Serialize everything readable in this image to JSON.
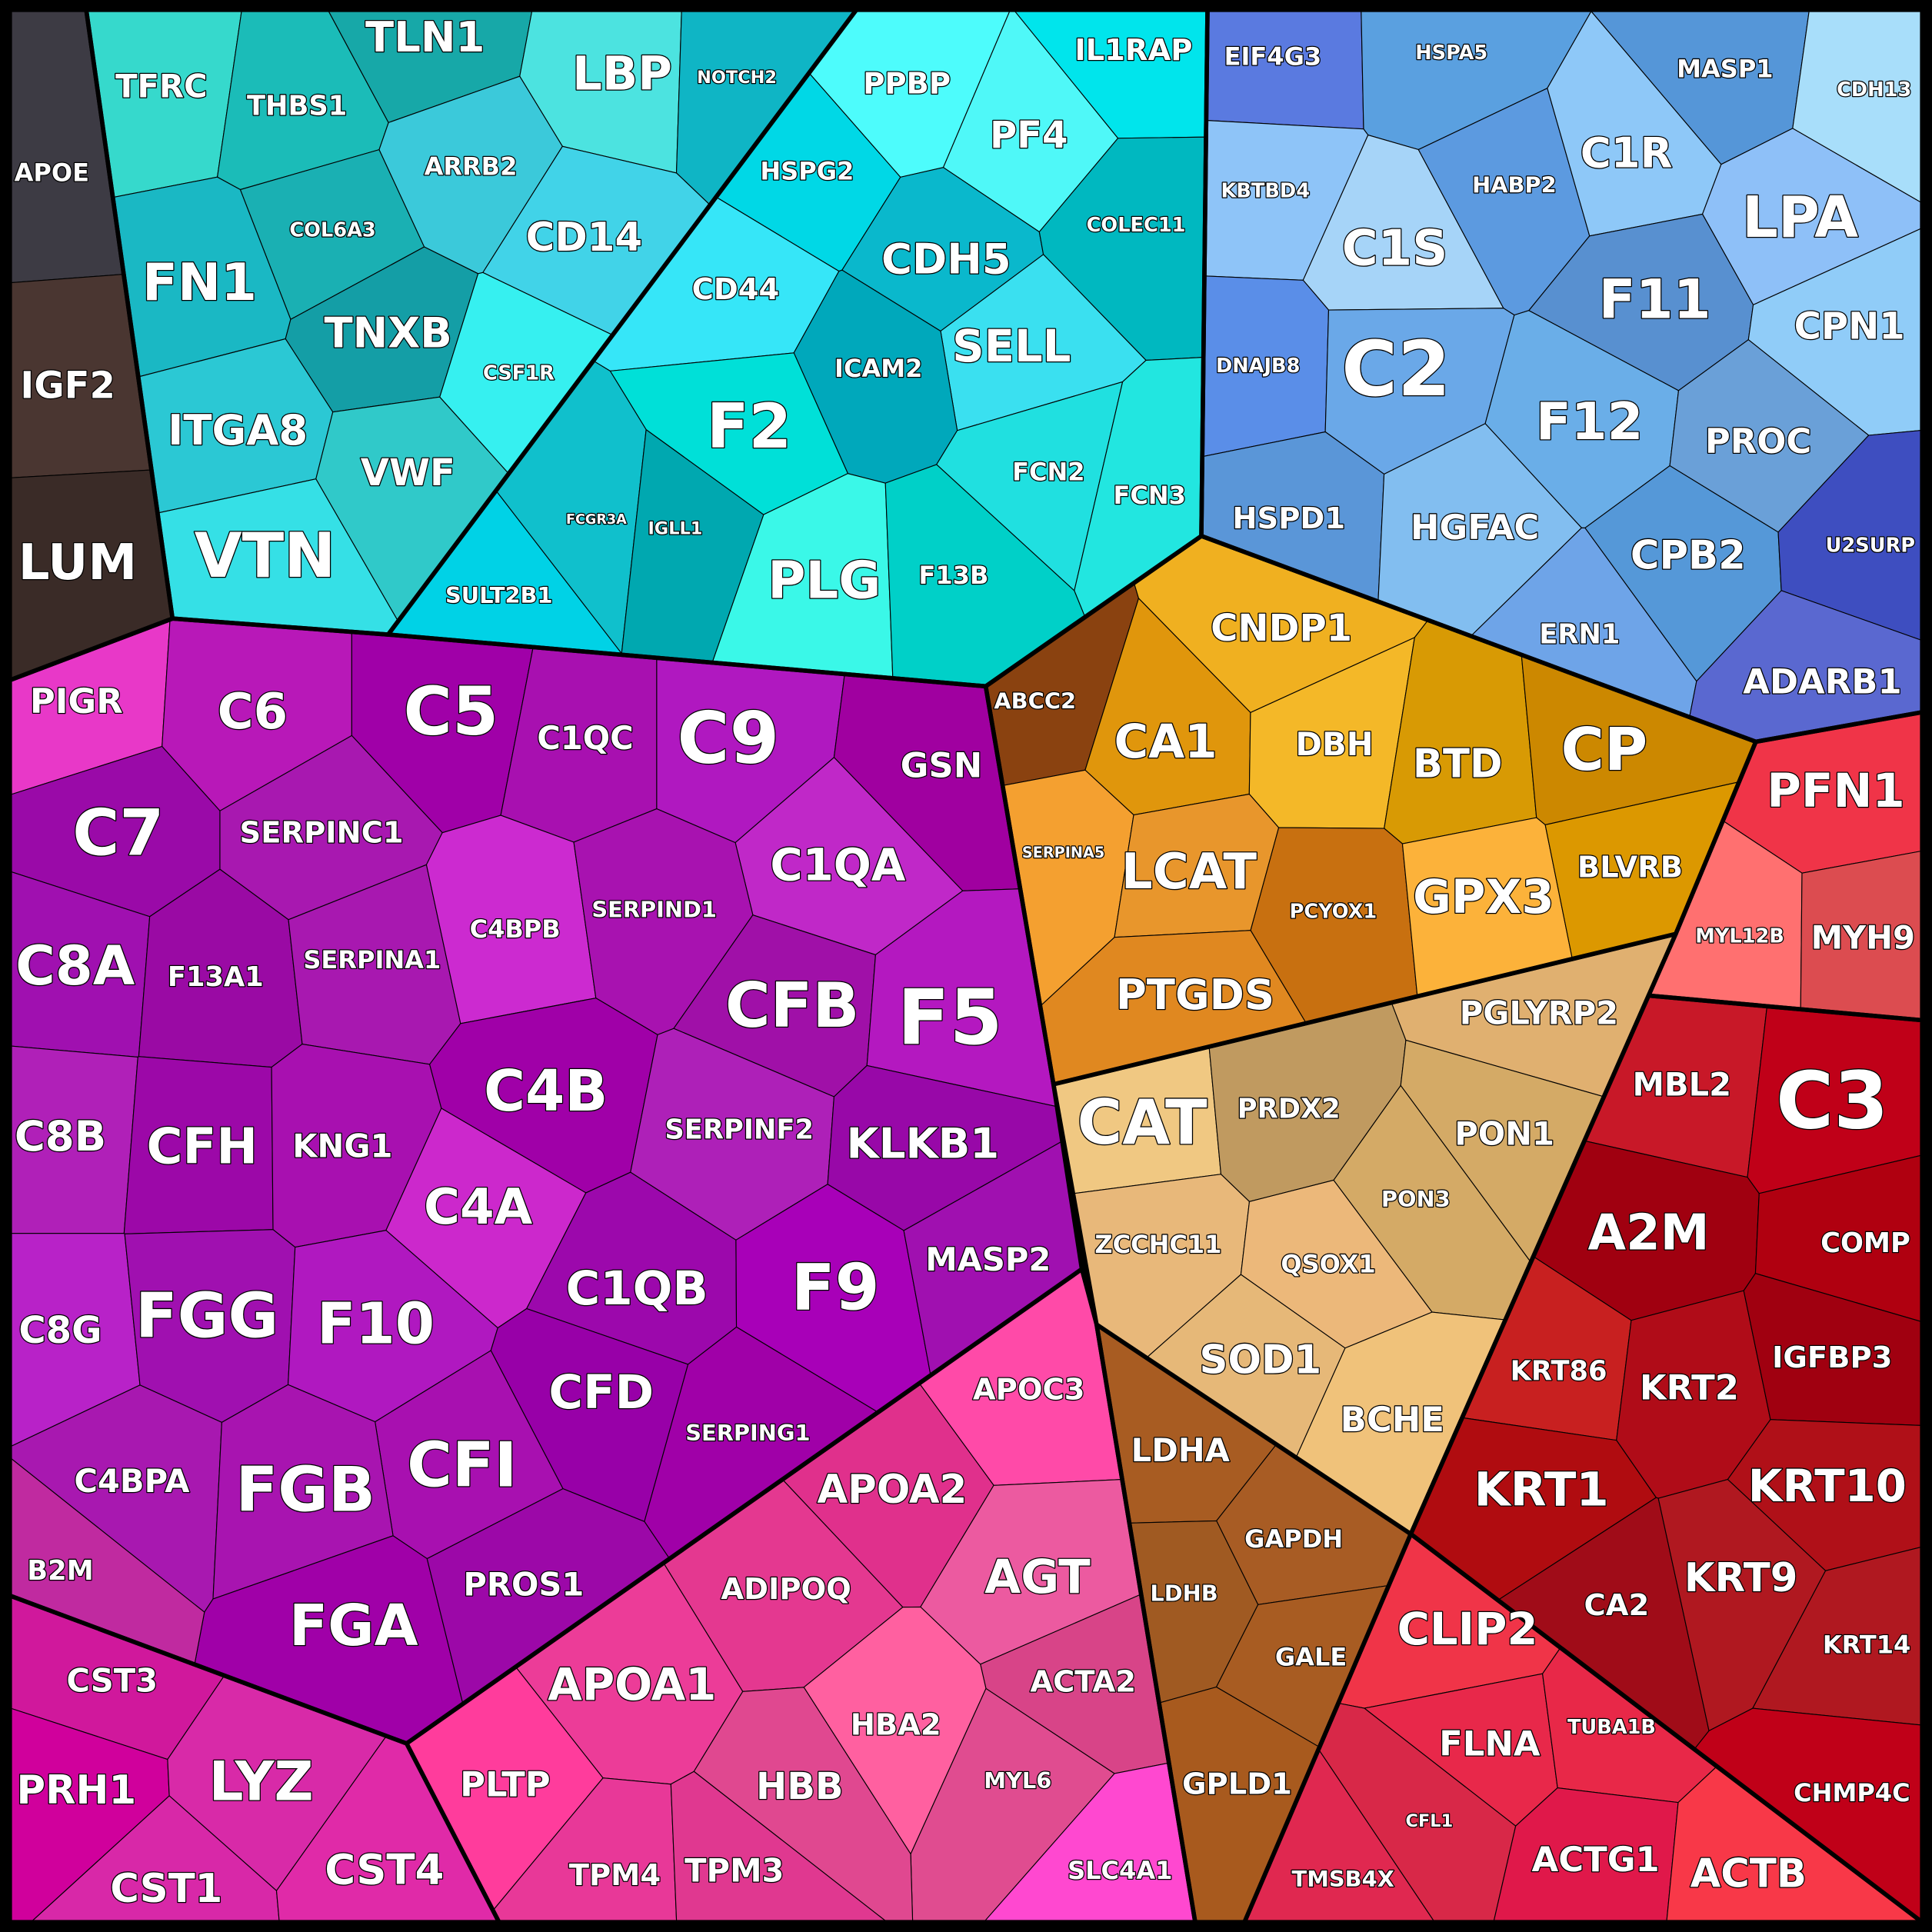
{
  "groups": [
    {
      "cells": [
        "APOE",
        "IGF2",
        "LUM"
      ]
    },
    {
      "cells": [
        "TFRC",
        "THBS1",
        "TLN1",
        "LBP",
        "NOTCH2",
        "ARRB2",
        "CD14",
        "COL6A3",
        "FN1",
        "TNXB",
        "ITGA8",
        "VWF",
        "VTN",
        "CSF1R"
      ]
    },
    {
      "cells": [
        "PPBP",
        "IL1RAP",
        "PF4",
        "HSPG2",
        "CDH5",
        "COLEC11",
        "CD44",
        "SELL",
        "ICAM2",
        "F2",
        "FCN2",
        "FCN3",
        "PLG",
        "F13B",
        "SULT2B1",
        "FCGR3A",
        "IGLL1"
      ]
    },
    {
      "cells": [
        "EIF4G3",
        "HSPA5",
        "MASP1",
        "CDH13",
        "KBTBD4",
        "C1S",
        "HABP2",
        "C1R",
        "LPA",
        "DNAJB8",
        "C2",
        "F11",
        "CPN1",
        "F12",
        "PROC",
        "HSPD1",
        "HGFAC",
        "CPB2",
        "U2SURP",
        "ERN1",
        "ADARB1"
      ]
    },
    {
      "cells": [
        "PIGR",
        "C6",
        "C5",
        "C1QC",
        "C9",
        "GSN",
        "C7",
        "SERPINC1",
        "C1QA",
        "C8A",
        "F13A1",
        "SERPINA1",
        "C4BPB",
        "SERPIND1",
        "CFB",
        "F5",
        "C8B",
        "CFH",
        "KNG1",
        "C4B",
        "SERPINF2",
        "KLKB1",
        "C4A",
        "C1QB",
        "F9",
        "MASP2",
        "C8G",
        "FGG",
        "F10",
        "CFD",
        "SERPING1",
        "CFI",
        "C4BPA",
        "FGB",
        "FGA",
        "PROS1",
        "B2M"
      ]
    },
    {
      "cells": [
        "CST3",
        "PRH1",
        "LYZ",
        "CST1",
        "CST4"
      ]
    },
    {
      "cells": [
        "APOC3",
        "APOA2",
        "AGT",
        "ADIPOQ",
        "APOA1",
        "ACTA2",
        "HBA2",
        "PLTP",
        "MYL6",
        "HBB",
        "TPM4",
        "TPM3",
        "SLC4A1"
      ]
    },
    {
      "cells": [
        "ABCC2",
        "CNDP1",
        "CA1",
        "DBH",
        "BTD",
        "CP",
        "SERPINA5",
        "LCAT",
        "PCYOX1",
        "GPX3",
        "BLVRB",
        "PTGDS"
      ]
    },
    {
      "cells": [
        "CAT",
        "PRDX2",
        "PGLYRP2",
        "PON1",
        "ZCCHC11",
        "QSOX1",
        "PON3",
        "SOD1",
        "BCHE"
      ]
    },
    {
      "cells": [
        "LDHA",
        "GAPDH",
        "LDHB",
        "GALE",
        "GPLD1"
      ]
    },
    {
      "cells": [
        "PFN1",
        "MYL12B",
        "MYH9"
      ]
    },
    {
      "cells": [
        "MBL2",
        "C3",
        "A2M",
        "COMP",
        "KRT86",
        "KRT2",
        "IGFBP3",
        "KRT1",
        "KRT10",
        "CA2",
        "KRT9",
        "KRT14",
        "CHMP4C"
      ]
    },
    {
      "cells": [
        "CLIP2",
        "FLNA",
        "TUBA1B",
        "CFL1",
        "TMSB4X",
        "ACTG1",
        "ACTB"
      ]
    }
  ]
}
